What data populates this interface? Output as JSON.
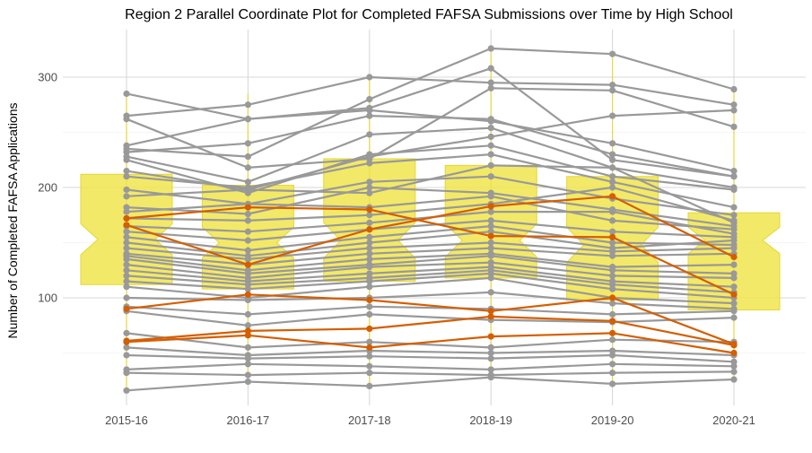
{
  "chart_data": {
    "type": "line",
    "title": "Region 2 Parallel Coordinate Plot for Completed FAFSA Submissions over Time by High School",
    "xlabel": "",
    "ylabel": "Number of Completed FAFSA Applications",
    "categories": [
      "2015-16",
      "2016-17",
      "2017-18",
      "2018-19",
      "2019-20",
      "2020-21"
    ],
    "ylim": [
      0,
      340
    ],
    "yticks": [
      100,
      200,
      300
    ],
    "grid": true,
    "colors": {
      "background_series": "#999999",
      "highlight_series": "#d55e00",
      "notched_box": "#f0e442",
      "grid": "#d9d9d9",
      "axis_text": "#4d4d4d"
    },
    "boxplots": [
      {
        "q1": 112,
        "median": 153,
        "q3": 212,
        "notch_low": 139,
        "notch_high": 167,
        "whisker_low": 16,
        "whisker_high": 285
      },
      {
        "q1": 108,
        "median": 150,
        "q3": 202,
        "notch_low": 136,
        "notch_high": 164,
        "whisker_low": 24,
        "whisker_high": 285
      },
      {
        "q1": 115,
        "median": 152,
        "q3": 226,
        "notch_low": 136,
        "notch_high": 168,
        "whisker_low": 20,
        "whisker_high": 301
      },
      {
        "q1": 118,
        "median": 152,
        "q3": 220,
        "notch_low": 137,
        "notch_high": 167,
        "whisker_low": 28,
        "whisker_high": 326
      },
      {
        "q1": 98,
        "median": 148,
        "q3": 210,
        "notch_low": 132,
        "notch_high": 164,
        "whisker_low": 22,
        "whisker_high": 321
      },
      {
        "q1": 89,
        "median": 152,
        "q3": 177,
        "notch_low": 140,
        "notch_high": 164,
        "whisker_low": 26,
        "whisker_high": 289
      }
    ],
    "background_series": [
      [
        285,
        262,
        270,
        260,
        240,
        215
      ],
      [
        265,
        275,
        300,
        295,
        293,
        275
      ],
      [
        262,
        218,
        226,
        290,
        288,
        255
      ],
      [
        238,
        262,
        272,
        308,
        225,
        210
      ],
      [
        235,
        228,
        280,
        326,
        321,
        289
      ],
      [
        232,
        240,
        265,
        262,
        230,
        210
      ],
      [
        228,
        205,
        248,
        254,
        218,
        200
      ],
      [
        225,
        195,
        230,
        238,
        210,
        198
      ],
      [
        215,
        198,
        228,
        246,
        265,
        270
      ],
      [
        210,
        200,
        222,
        230,
        205,
        182
      ],
      [
        198,
        185,
        205,
        210,
        190,
        175
      ],
      [
        192,
        198,
        195,
        220,
        218,
        168
      ],
      [
        182,
        176,
        200,
        195,
        180,
        165
      ],
      [
        178,
        185,
        182,
        192,
        170,
        162
      ],
      [
        172,
        170,
        175,
        185,
        200,
        170
      ],
      [
        165,
        160,
        168,
        178,
        178,
        158
      ],
      [
        160,
        152,
        162,
        170,
        160,
        155
      ],
      [
        155,
        143,
        155,
        165,
        150,
        148
      ],
      [
        150,
        138,
        150,
        160,
        145,
        152
      ],
      [
        145,
        135,
        145,
        150,
        142,
        145
      ],
      [
        140,
        130,
        140,
        145,
        138,
        140
      ],
      [
        138,
        125,
        135,
        140,
        128,
        130
      ],
      [
        135,
        122,
        130,
        138,
        125,
        122
      ],
      [
        130,
        118,
        128,
        132,
        120,
        118
      ],
      [
        125,
        115,
        122,
        128,
        115,
        110
      ],
      [
        120,
        112,
        118,
        125,
        112,
        105
      ],
      [
        115,
        108,
        115,
        122,
        108,
        100
      ],
      [
        110,
        100,
        110,
        118,
        100,
        95
      ],
      [
        100,
        98,
        100,
        105,
        95,
        90
      ],
      [
        92,
        85,
        92,
        90,
        85,
        88
      ],
      [
        88,
        75,
        85,
        80,
        78,
        82
      ],
      [
        68,
        55,
        60,
        55,
        62,
        60
      ],
      [
        55,
        48,
        52,
        50,
        52,
        48
      ],
      [
        48,
        45,
        47,
        45,
        48,
        42
      ],
      [
        35,
        40,
        38,
        35,
        40,
        38
      ],
      [
        32,
        30,
        32,
        30,
        32,
        33
      ],
      [
        16,
        24,
        20,
        28,
        22,
        26
      ]
    ],
    "highlight_series": [
      [
        172,
        182,
        180,
        156,
        155,
        103
      ],
      [
        166,
        130,
        162,
        183,
        192,
        137
      ],
      [
        90,
        103,
        98,
        88,
        100,
        58
      ],
      [
        61,
        70,
        72,
        83,
        79,
        57
      ],
      [
        60,
        66,
        55,
        65,
        68,
        50
      ]
    ]
  }
}
